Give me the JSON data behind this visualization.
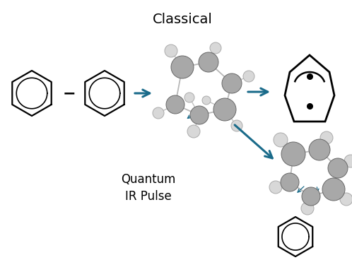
{
  "title": "Classical",
  "quantum_label": "Quantum\nIR Pulse",
  "bg_color": "#ffffff",
  "arrow_color": "#1a6b8a",
  "text_color": "#000000",
  "title_fontsize": 14,
  "label_fontsize": 12,
  "fig_width": 4.98,
  "fig_height": 3.68
}
